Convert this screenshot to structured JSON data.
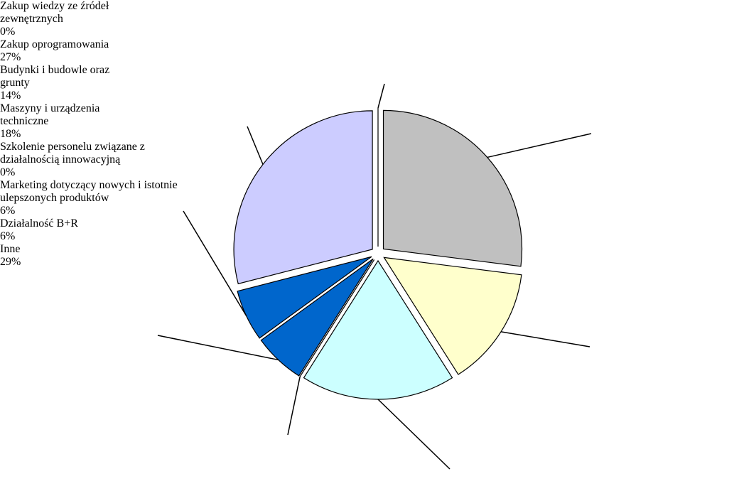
{
  "chart_data": {
    "type": "pie",
    "categories": [
      "Zakup wiedzy ze źródeł zewnętrznych",
      "Zakup oprogramowania",
      "Budynki i budowle oraz grunty",
      "Maszyny i urządzenia techniczne",
      "Szkolenie personelu związane z działalnością innowacyjną",
      "Marketing dotyczący nowych i istotnie ulepszonych produktów",
      "Działalność B+R",
      "Inne"
    ],
    "values": [
      0,
      27,
      14,
      18,
      0,
      6,
      6,
      29
    ],
    "value_labels": [
      "0%",
      "27%",
      "14%",
      "18%",
      "0%",
      "6%",
      "6%",
      "29%"
    ],
    "colors": [
      "#333399",
      "#c0c0c0",
      "#ffffcc",
      "#ccffff",
      "#339966",
      "#0066cc",
      "#0066cc",
      "#ccccff"
    ]
  }
}
